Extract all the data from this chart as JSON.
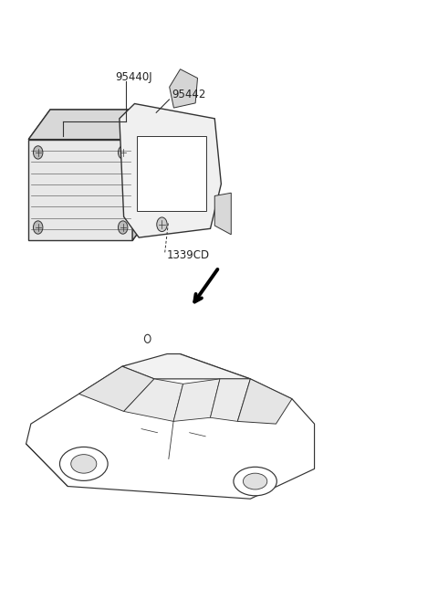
{
  "background_color": "#ffffff",
  "line_color": "#333333",
  "label_color": "#222222",
  "fig_width": 4.8,
  "fig_height": 6.57,
  "dpi": 100,
  "label_fontsize": 8.5
}
